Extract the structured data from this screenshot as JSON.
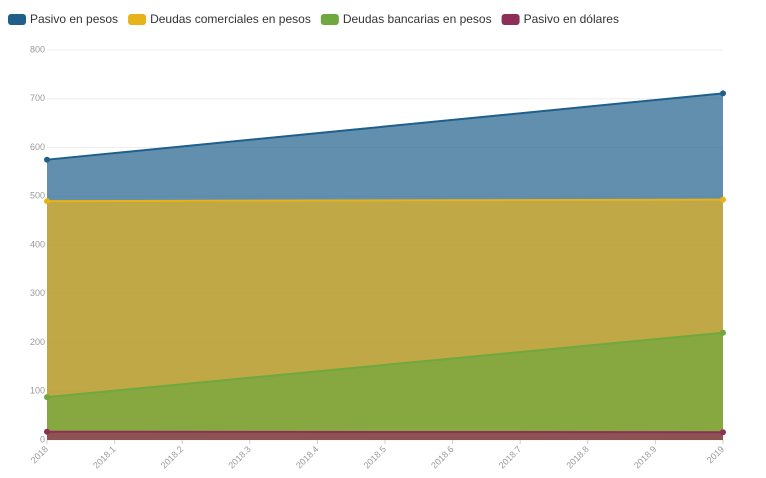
{
  "chart_data": {
    "type": "area",
    "x": [
      2018,
      2019
    ],
    "series": [
      {
        "name": "Pasivo en pesos",
        "color": "#1f5f8b",
        "values": [
          575,
          711
        ]
      },
      {
        "name": "Deudas comerciales en pesos",
        "color": "#e8b21a",
        "values": [
          490,
          493
        ]
      },
      {
        "name": "Deudas bancarias en pesos",
        "color": "#6fa83e",
        "values": [
          88,
          220
        ]
      },
      {
        "name": "Pasivo en dólares",
        "color": "#8e2f5a",
        "values": [
          17,
          16
        ]
      }
    ],
    "xlim": [
      2018,
      2019
    ],
    "xticks": [
      2018,
      2018.1,
      2018.2,
      2018.3,
      2018.4,
      2018.5,
      2018.6,
      2018.7,
      2018.8,
      2018.9,
      2019
    ],
    "ylim": [
      0,
      800
    ],
    "yticks": [
      0,
      100,
      200,
      300,
      400,
      500,
      600,
      700,
      800
    ],
    "grid": true
  }
}
